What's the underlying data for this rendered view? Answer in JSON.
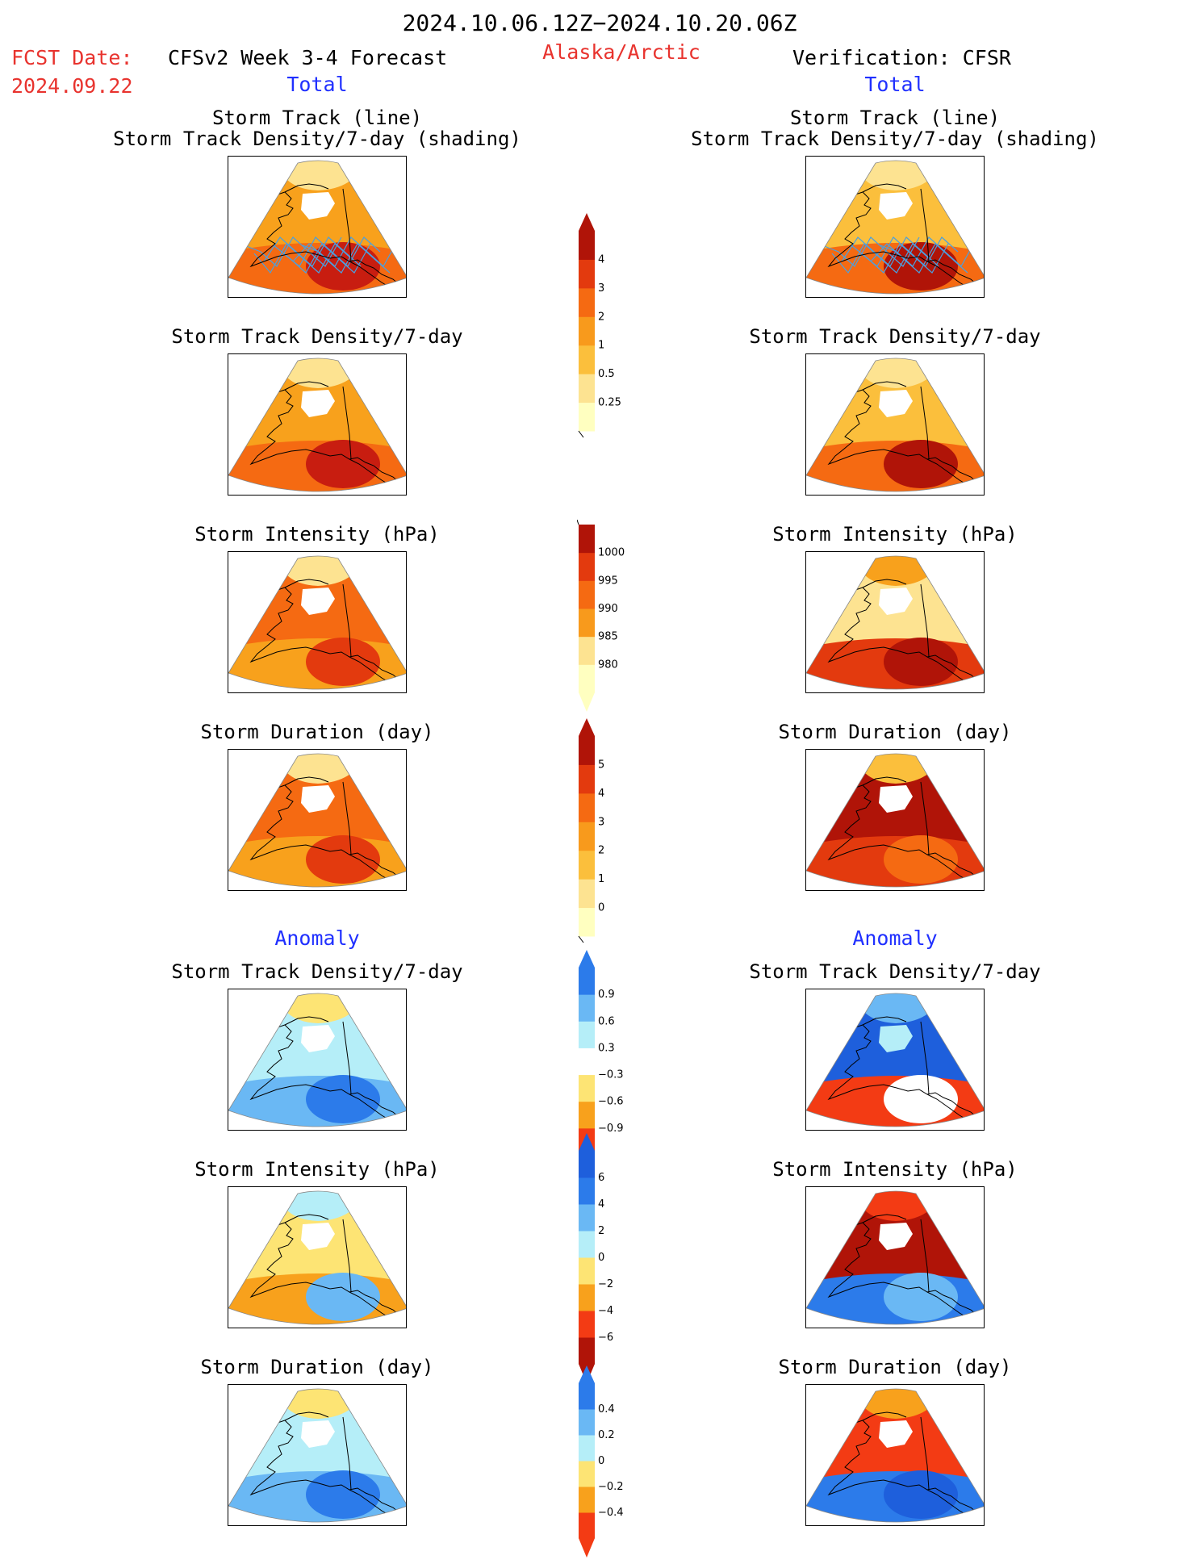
{
  "header": {
    "period": "2024.10.06.12Z−2024.10.20.06Z",
    "fcst_label": "FCST Date:",
    "fcst_date": "2024.09.22",
    "model": "CFSv2 Week 3-4 Forecast",
    "region": "Alaska/Arctic",
    "verification": "Verification: CFSR",
    "total_left": "Total",
    "total_right": "Total",
    "anomaly_left": "Anomaly",
    "anomaly_right": "Anomaly"
  },
  "titles": {
    "track_line": "Storm Track (line)",
    "track_shading": "Storm Track Density/7-day (shading)",
    "density": "Storm Track Density/7-day",
    "intensity": "Storm Intensity (hPa)",
    "duration": "Storm Duration (day)"
  },
  "colorbars": {
    "density_total": {
      "labels": [
        "4",
        "3",
        "2",
        "1",
        "0.5",
        "0.25"
      ],
      "colors": [
        "#ffffc0",
        "#fde391",
        "#fbbf3c",
        "#f89a1c",
        "#f56a12",
        "#e33a0e",
        "#b01408"
      ]
    },
    "intensity_total": {
      "labels": [
        "1000",
        "995",
        "990",
        "985",
        "980"
      ],
      "colors": [
        "#ffffc0",
        "#fde391",
        "#f89a1c",
        "#f56a12",
        "#e33a0e",
        "#b01408"
      ]
    },
    "duration_total": {
      "labels": [
        "5",
        "4",
        "3",
        "2",
        "1",
        "0"
      ],
      "colors": [
        "#ffffc0",
        "#fde391",
        "#fbbf3c",
        "#f89a1c",
        "#f56a12",
        "#e33a0e",
        "#b01408"
      ]
    },
    "density_anom": {
      "labels": [
        "0.9",
        "0.6",
        "0.3",
        "−0.3",
        "−0.6",
        "−0.9"
      ],
      "colors": [
        "#f33b14",
        "#f8a11c",
        "#fde474",
        "#ffffff",
        "#b5eef8",
        "#6ab8f4",
        "#2c7bea"
      ]
    },
    "intensity_anom": {
      "labels": [
        "6",
        "4",
        "2",
        "0",
        "−2",
        "−4",
        "−6"
      ],
      "colors": [
        "#b01408",
        "#f33b14",
        "#f8a11c",
        "#fde474",
        "#b5eef8",
        "#6ab8f4",
        "#2c7bea",
        "#1e5fdc"
      ]
    },
    "duration_anom": {
      "labels": [
        "0.4",
        "0.2",
        "0",
        "−0.2",
        "−0.4"
      ],
      "colors": [
        "#f33b14",
        "#f8a11c",
        "#fde474",
        "#b5eef8",
        "#6ab8f4",
        "#2c7bea"
      ]
    }
  },
  "panels": [
    {
      "id": "fcst-track",
      "palette": [
        "#f8a11c",
        "#f56a12",
        "#c81d10",
        "#fde391",
        "#ffffff"
      ],
      "tracks": true
    },
    {
      "id": "cfsr-track",
      "palette": [
        "#fbbf3c",
        "#f56a12",
        "#b01408",
        "#fde391",
        "#ffffff"
      ],
      "tracks": true
    },
    {
      "id": "fcst-density",
      "palette": [
        "#f8a11c",
        "#f56a12",
        "#c81d10",
        "#fde391",
        "#ffffff"
      ]
    },
    {
      "id": "cfsr-density",
      "palette": [
        "#fbbf3c",
        "#f56a12",
        "#b01408",
        "#fde391",
        "#ffffff"
      ]
    },
    {
      "id": "fcst-intensity",
      "palette": [
        "#f56a12",
        "#f8a11c",
        "#e33a0e",
        "#fde391",
        "#ffffff"
      ]
    },
    {
      "id": "cfsr-intensity",
      "palette": [
        "#fde391",
        "#e33a0e",
        "#b01408",
        "#f8a11c",
        "#ffffff"
      ]
    },
    {
      "id": "fcst-duration",
      "palette": [
        "#f56a12",
        "#f8a11c",
        "#e33a0e",
        "#fde391",
        "#ffffff"
      ]
    },
    {
      "id": "cfsr-duration",
      "palette": [
        "#b01408",
        "#e33a0e",
        "#f56a12",
        "#fbbf3c",
        "#ffffff"
      ]
    },
    {
      "id": "fcst-density-anom",
      "palette": [
        "#b5eef8",
        "#6ab8f4",
        "#2c7bea",
        "#fde474",
        "#ffffff"
      ]
    },
    {
      "id": "cfsr-density-anom",
      "palette": [
        "#1e5fdc",
        "#f33b14",
        "#ffffff",
        "#6ab8f4",
        "#b5eef8"
      ]
    },
    {
      "id": "fcst-intensity-anom",
      "palette": [
        "#fde474",
        "#f8a11c",
        "#6ab8f4",
        "#b5eef8",
        "#ffffff"
      ]
    },
    {
      "id": "cfsr-intensity-anom",
      "palette": [
        "#b01408",
        "#2c7bea",
        "#6ab8f4",
        "#f33b14",
        "#ffffff"
      ]
    },
    {
      "id": "fcst-duration-anom",
      "palette": [
        "#b5eef8",
        "#6ab8f4",
        "#2c7bea",
        "#fde474",
        "#ffffff"
      ]
    },
    {
      "id": "cfsr-duration-anom",
      "palette": [
        "#f33b14",
        "#2c7bea",
        "#1e5fdc",
        "#f8a11c",
        "#ffffff"
      ]
    }
  ]
}
